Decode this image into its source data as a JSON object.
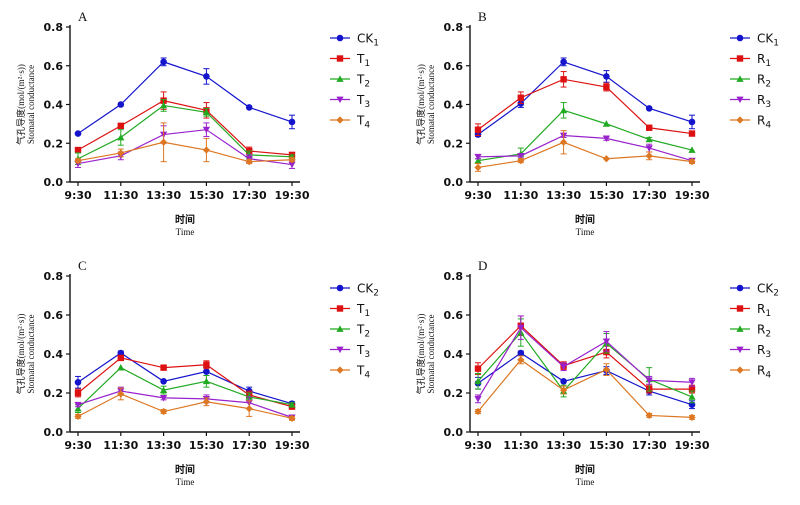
{
  "chart_data": [
    {
      "type": "line",
      "panel": "A",
      "categories": [
        "9:30",
        "11:30",
        "13:30",
        "15:30",
        "17:30",
        "19:30"
      ],
      "ylabel_cn": "气孔导度(mol/(m²·s))",
      "ylabel_en": "Stomatal conductance",
      "xlabel_cn": "时间",
      "xlabel_en": "Time",
      "ylim": [
        0,
        0.8
      ],
      "yticks": [
        "0.0",
        "0.2",
        "0.4",
        "0.6",
        "0.8"
      ],
      "legend_position": "right",
      "series": [
        {
          "name": "CK",
          "sub": "1",
          "color": "#1414cc",
          "marker": "circle",
          "values": [
            0.25,
            0.4,
            0.62,
            0.545,
            0.385,
            0.31
          ],
          "errors": [
            0.0,
            0.0,
            0.02,
            0.04,
            0.0,
            0.035
          ]
        },
        {
          "name": "T",
          "sub": "1",
          "color": "#dd1111",
          "marker": "square",
          "values": [
            0.165,
            0.29,
            0.42,
            0.37,
            0.16,
            0.14
          ],
          "errors": [
            0.0,
            0.0,
            0.045,
            0.04,
            0.02,
            0.01
          ]
        },
        {
          "name": "T",
          "sub": "2",
          "color": "#22aa22",
          "marker": "triangle-up",
          "values": [
            0.12,
            0.23,
            0.395,
            0.36,
            0.14,
            0.13
          ],
          "errors": [
            0.03,
            0.04,
            0.03,
            0.02,
            0.02,
            0.01
          ]
        },
        {
          "name": "T",
          "sub": "3",
          "color": "#9922cc",
          "marker": "triangle-down",
          "values": [
            0.095,
            0.135,
            0.245,
            0.27,
            0.12,
            0.09
          ],
          "errors": [
            0.02,
            0.02,
            0.045,
            0.035,
            0.02,
            0.02
          ]
        },
        {
          "name": "T",
          "sub": "4",
          "color": "#dd7722",
          "marker": "diamond",
          "values": [
            0.11,
            0.15,
            0.205,
            0.165,
            0.105,
            0.115
          ],
          "errors": [
            0.01,
            0.02,
            0.1,
            0.06,
            0.01,
            0.01
          ]
        }
      ]
    },
    {
      "type": "line",
      "panel": "B",
      "categories": [
        "9:30",
        "11:30",
        "13:30",
        "15:30",
        "17:30",
        "19:30"
      ],
      "ylabel_cn": "气孔导度(mol/(m²·s))",
      "ylabel_en": "Stomatal conductance",
      "xlabel_cn": "时间",
      "xlabel_en": "Time",
      "ylim": [
        0,
        0.8
      ],
      "yticks": [
        "0.0",
        "0.2",
        "0.4",
        "0.6",
        "0.8"
      ],
      "legend_position": "right",
      "series": [
        {
          "name": "CK",
          "sub": "1",
          "color": "#1414cc",
          "marker": "circle",
          "values": [
            0.245,
            0.405,
            0.62,
            0.545,
            0.38,
            0.31
          ],
          "errors": [
            0.01,
            0.02,
            0.02,
            0.03,
            0.0,
            0.035
          ]
        },
        {
          "name": "R",
          "sub": "1",
          "color": "#dd1111",
          "marker": "square",
          "values": [
            0.27,
            0.435,
            0.53,
            0.49,
            0.28,
            0.25
          ],
          "errors": [
            0.03,
            0.03,
            0.04,
            0.02,
            0.0,
            0.0
          ]
        },
        {
          "name": "R",
          "sub": "2",
          "color": "#22aa22",
          "marker": "triangle-up",
          "values": [
            0.11,
            0.145,
            0.37,
            0.3,
            0.22,
            0.165
          ],
          "errors": [
            0.01,
            0.03,
            0.04,
            0.0,
            0.01,
            0.0
          ]
        },
        {
          "name": "R",
          "sub": "3",
          "color": "#9922cc",
          "marker": "triangle-down",
          "values": [
            0.13,
            0.135,
            0.24,
            0.225,
            0.175,
            0.11
          ],
          "errors": [
            0.01,
            0.01,
            0.01,
            0.01,
            0.02,
            0.01
          ]
        },
        {
          "name": "R",
          "sub": "4",
          "color": "#dd7722",
          "marker": "diamond",
          "values": [
            0.075,
            0.11,
            0.205,
            0.12,
            0.135,
            0.105
          ],
          "errors": [
            0.02,
            0.01,
            0.06,
            0.0,
            0.02,
            0.01
          ]
        }
      ]
    },
    {
      "type": "line",
      "panel": "C",
      "categories": [
        "9:30",
        "11:30",
        "13:30",
        "15:30",
        "17:30",
        "19:30"
      ],
      "ylabel_cn": "气孔导度(mol/(m²·s))",
      "ylabel_en": "Stomatal conductance",
      "xlabel_cn": "时间",
      "xlabel_en": "Time",
      "ylim": [
        0,
        0.8
      ],
      "yticks": [
        "0.0",
        "0.2",
        "0.4",
        "0.6",
        "0.8"
      ],
      "legend_position": "right",
      "series": [
        {
          "name": "CK",
          "sub": "2",
          "color": "#1414cc",
          "marker": "circle",
          "values": [
            0.255,
            0.405,
            0.26,
            0.31,
            0.21,
            0.145
          ],
          "errors": [
            0.03,
            0.01,
            0.0,
            0.02,
            0.02,
            0.01
          ]
        },
        {
          "name": "T",
          "sub": "1",
          "color": "#dd1111",
          "marker": "square",
          "values": [
            0.2,
            0.38,
            0.33,
            0.345,
            0.19,
            0.13
          ],
          "errors": [
            0.02,
            0.01,
            0.0,
            0.02,
            0.02,
            0.01
          ]
        },
        {
          "name": "T",
          "sub": "2",
          "color": "#22aa22",
          "marker": "triangle-up",
          "values": [
            0.12,
            0.33,
            0.215,
            0.26,
            0.18,
            0.14
          ],
          "errors": [
            0.02,
            0.0,
            0.02,
            0.03,
            0.02,
            0.01
          ]
        },
        {
          "name": "T",
          "sub": "3",
          "color": "#9922cc",
          "marker": "triangle-down",
          "values": [
            0.14,
            0.21,
            0.175,
            0.17,
            0.15,
            0.075
          ],
          "errors": [
            0.01,
            0.02,
            0.01,
            0.02,
            0.03,
            0.01
          ]
        },
        {
          "name": "T",
          "sub": "4",
          "color": "#dd7722",
          "marker": "diamond",
          "values": [
            0.08,
            0.195,
            0.105,
            0.155,
            0.12,
            0.07
          ],
          "errors": [
            0.01,
            0.03,
            0.01,
            0.02,
            0.04,
            0.01
          ]
        }
      ]
    },
    {
      "type": "line",
      "panel": "D",
      "categories": [
        "9:30",
        "11:30",
        "13:30",
        "15:30",
        "17:30",
        "19:30"
      ],
      "ylabel_cn": "气孔导度(mol/(m²·s))",
      "ylabel_en": "Stomatal conductance",
      "xlabel_cn": "时间",
      "xlabel_en": "Time",
      "ylim": [
        0,
        0.8
      ],
      "yticks": [
        "0.0",
        "0.2",
        "0.4",
        "0.6",
        "0.8"
      ],
      "legend_position": "right",
      "series": [
        {
          "name": "CK",
          "sub": "2",
          "color": "#1414cc",
          "marker": "circle",
          "values": [
            0.25,
            0.405,
            0.26,
            0.315,
            0.21,
            0.14
          ],
          "errors": [
            0.03,
            0.01,
            0.0,
            0.02,
            0.02,
            0.02
          ]
        },
        {
          "name": "R",
          "sub": "1",
          "color": "#dd1111",
          "marker": "square",
          "values": [
            0.325,
            0.545,
            0.34,
            0.41,
            0.22,
            0.22
          ],
          "errors": [
            0.03,
            0.05,
            0.02,
            0.03,
            0.02,
            0.02
          ]
        },
        {
          "name": "R",
          "sub": "2",
          "color": "#22aa22",
          "marker": "triangle-up",
          "values": [
            0.26,
            0.51,
            0.21,
            0.455,
            0.27,
            0.18
          ],
          "errors": [
            0.04,
            0.07,
            0.03,
            0.05,
            0.06,
            0.03
          ]
        },
        {
          "name": "R",
          "sub": "3",
          "color": "#9922cc",
          "marker": "triangle-down",
          "values": [
            0.17,
            0.535,
            0.335,
            0.465,
            0.265,
            0.255
          ],
          "errors": [
            0.02,
            0.06,
            0.02,
            0.05,
            0.02,
            0.02
          ]
        },
        {
          "name": "R",
          "sub": "4",
          "color": "#dd7722",
          "marker": "diamond",
          "values": [
            0.105,
            0.37,
            0.215,
            0.32,
            0.085,
            0.075
          ],
          "errors": [
            0.01,
            0.02,
            0.02,
            0.03,
            0.01,
            0.01
          ]
        }
      ]
    }
  ]
}
